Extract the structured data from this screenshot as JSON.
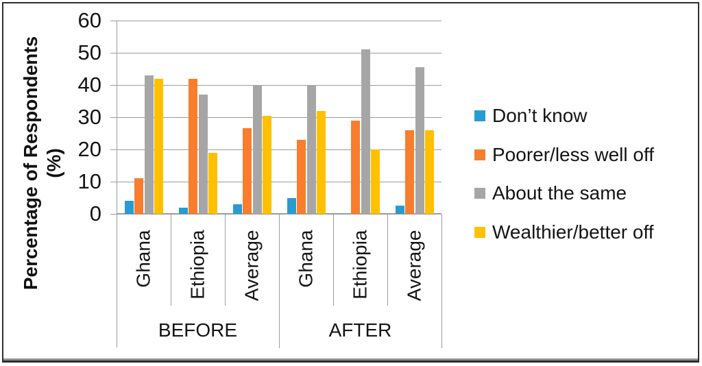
{
  "figure": {
    "ylabel_line1": "Percentage of Respondents",
    "ylabel_line2": "(%)"
  },
  "chart_data": {
    "type": "bar",
    "title": "",
    "ylabel": "Percentage of Respondents (%)",
    "ylim": [
      0,
      60
    ],
    "yticks": [
      0,
      10,
      20,
      30,
      40,
      50,
      60
    ],
    "grid": true,
    "legend_position": "right",
    "group_labels": [
      "BEFORE",
      "AFTER"
    ],
    "categories": [
      "Ghana",
      "Ethiopia",
      "Average",
      "Ghana",
      "Ethiopia",
      "Average"
    ],
    "series": [
      {
        "name": "Don’t know",
        "color": "#289BD2",
        "values": [
          4,
          2,
          3,
          5,
          0,
          2.5
        ]
      },
      {
        "name": "Poorer/less well off",
        "color": "#F87D2D",
        "values": [
          11,
          42,
          26.5,
          23,
          29,
          26
        ]
      },
      {
        "name": "About the same",
        "color": "#A6A6A6",
        "values": [
          43,
          37,
          40,
          40,
          51,
          45.5
        ]
      },
      {
        "name": "Wealthier/better off",
        "color": "#FFC000",
        "values": [
          42,
          19,
          30.5,
          32,
          20,
          26
        ]
      }
    ]
  }
}
